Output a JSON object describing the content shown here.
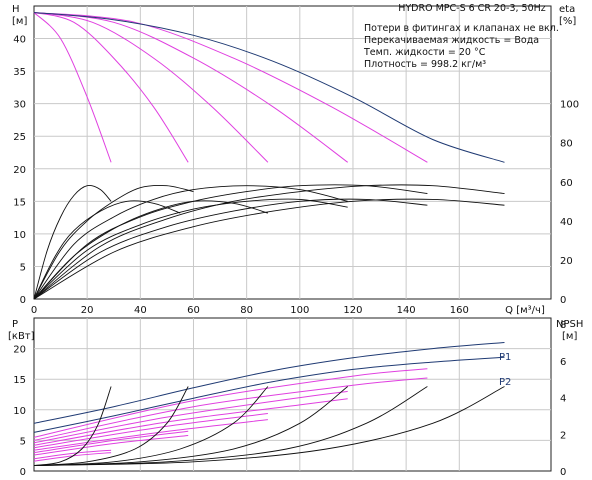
{
  "chart_data": [
    {
      "type": "line",
      "title": "HYDRO MPC-S 6 CR 20-3, 50Hz",
      "notes": [
        "Потери в фитингах и клапанах не вкл.",
        "Перекачиваемая жидкость = Вода",
        "Темп. жидкости = 20 °C",
        "Плотность = 998.2 кг/м³"
      ],
      "xlabel": "Q [м³/ч]",
      "xlim": [
        0,
        180
      ],
      "xticks": [
        0,
        20,
        40,
        60,
        80,
        100,
        120,
        140,
        160
      ],
      "ylabel_left": [
        "H",
        "[м]"
      ],
      "ylim_left": [
        0,
        45
      ],
      "yticks_left": [
        0,
        5,
        10,
        15,
        20,
        25,
        30,
        35,
        40
      ],
      "ylabel_right": [
        "eta",
        "[%]"
      ],
      "ylim_right": [
        0,
        150
      ],
      "yticks_right": [
        0,
        20,
        40,
        60,
        80,
        100
      ],
      "grid": true,
      "series_head_full": [
        {
          "pumps": 6,
          "color": "#1f3a73",
          "points": [
            [
              0,
              44.0
            ],
            [
              30,
              42.9
            ],
            [
              60,
              40.5
            ],
            [
              90,
              36.5
            ],
            [
              120,
              31.0
            ],
            [
              150,
              24.5
            ],
            [
              177,
              21.0
            ]
          ]
        }
      ],
      "series_head_reduced": [
        {
          "color": "#e040e0",
          "points": [
            [
              0,
              44.0
            ],
            [
              10,
              40.0
            ],
            [
              20,
              31.0
            ],
            [
              29,
              21.0
            ]
          ]
        },
        {
          "color": "#e040e0",
          "points": [
            [
              0,
              44.0
            ],
            [
              15,
              42.5
            ],
            [
              30,
              37.0
            ],
            [
              45,
              29.5
            ],
            [
              58,
              21.0
            ]
          ]
        },
        {
          "color": "#e040e0",
          "points": [
            [
              0,
              44.0
            ],
            [
              22,
              42.5
            ],
            [
              45,
              37.0
            ],
            [
              67,
              29.5
            ],
            [
              88,
              21.0
            ]
          ]
        },
        {
          "color": "#e040e0",
          "points": [
            [
              0,
              44.0
            ],
            [
              30,
              42.5
            ],
            [
              60,
              37.0
            ],
            [
              90,
              29.5
            ],
            [
              118,
              21.0
            ]
          ]
        },
        {
          "color": "#e040e0",
          "points": [
            [
              0,
              44.0
            ],
            [
              38,
              42.5
            ],
            [
              75,
              37.0
            ],
            [
              112,
              29.5
            ],
            [
              148,
              21.0
            ]
          ]
        }
      ],
      "series_eta": [
        {
          "points": [
            [
              0,
              0
            ],
            [
              5,
              25
            ],
            [
              10,
              42
            ],
            [
              15,
              53
            ],
            [
              20,
              58
            ],
            [
              25,
              56
            ],
            [
              29,
              50
            ]
          ]
        },
        {
          "points": [
            [
              0,
              0
            ],
            [
              8,
              22
            ],
            [
              15,
              35
            ],
            [
              25,
              45
            ],
            [
              35,
              50
            ],
            [
              45,
              49
            ],
            [
              55,
              44
            ]
          ]
        },
        {
          "points": [
            [
              0,
              0
            ],
            [
              10,
              25
            ],
            [
              20,
              40
            ],
            [
              30,
              50
            ],
            [
              40,
              57
            ],
            [
              50,
              58
            ],
            [
              60,
              55
            ]
          ]
        },
        {
          "points": [
            [
              0,
              0
            ],
            [
              15,
              22
            ],
            [
              30,
              36
            ],
            [
              45,
              45
            ],
            [
              60,
              50
            ],
            [
              75,
              49
            ],
            [
              88,
              44
            ]
          ]
        },
        {
          "points": [
            [
              0,
              0
            ],
            [
              15,
              28
            ],
            [
              30,
              42
            ],
            [
              45,
              51
            ],
            [
              60,
              56
            ],
            [
              80,
              58
            ],
            [
              100,
              56
            ],
            [
              118,
              50
            ]
          ]
        },
        {
          "points": [
            [
              0,
              0
            ],
            [
              20,
              25
            ],
            [
              40,
              38
            ],
            [
              60,
              46
            ],
            [
              80,
              50
            ],
            [
              100,
              51
            ],
            [
              118,
              47
            ]
          ]
        },
        {
          "points": [
            [
              0,
              0
            ],
            [
              20,
              28
            ],
            [
              40,
              42
            ],
            [
              60,
              50
            ],
            [
              80,
              55
            ],
            [
              100,
              58
            ],
            [
              125,
              58
            ],
            [
              148,
              54
            ]
          ]
        },
        {
          "points": [
            [
              0,
              0
            ],
            [
              25,
              24
            ],
            [
              50,
              37
            ],
            [
              75,
              45
            ],
            [
              100,
              50
            ],
            [
              125,
              51
            ],
            [
              148,
              48
            ]
          ]
        },
        {
          "points": [
            [
              0,
              0
            ],
            [
              25,
              27
            ],
            [
              50,
              41
            ],
            [
              75,
              50
            ],
            [
              100,
              55
            ],
            [
              125,
              58
            ],
            [
              150,
              58
            ],
            [
              177,
              54
            ]
          ]
        },
        {
          "points": [
            [
              0,
              0
            ],
            [
              30,
              24
            ],
            [
              60,
              37
            ],
            [
              90,
              45
            ],
            [
              120,
              50
            ],
            [
              150,
              51
            ],
            [
              177,
              48
            ]
          ]
        }
      ]
    },
    {
      "type": "line",
      "xlim": [
        0,
        180
      ],
      "ylabel_left": [
        "P",
        "[кВт]"
      ],
      "ylim_left": [
        0,
        25
      ],
      "yticks_left": [
        0,
        5,
        10,
        15,
        20
      ],
      "ylabel_right": [
        "NPSH",
        "[м]"
      ],
      "ylim_right": [
        0,
        8.333
      ],
      "yticks_right": [
        0,
        2,
        4,
        6,
        8
      ],
      "grid": true,
      "series_labels": [
        "P1",
        "P2"
      ],
      "series_P1": {
        "name": "P1",
        "color": "#1f3a73",
        "points": [
          [
            0,
            7.8
          ],
          [
            30,
            10.5
          ],
          [
            60,
            13.6
          ],
          [
            90,
            16.4
          ],
          [
            120,
            18.5
          ],
          [
            150,
            20.0
          ],
          [
            177,
            21.0
          ]
        ]
      },
      "series_P2": {
        "name": "P2",
        "color": "#1f3a73",
        "points": [
          [
            0,
            6.3
          ],
          [
            30,
            9.0
          ],
          [
            60,
            11.9
          ],
          [
            90,
            14.6
          ],
          [
            120,
            16.6
          ],
          [
            150,
            17.8
          ],
          [
            177,
            18.6
          ]
        ]
      },
      "series_power_reduced": [
        {
          "color": "#e040e0",
          "points": [
            [
              0,
              5.5
            ],
            [
              60,
              11.5
            ],
            [
              120,
              15.5
            ],
            [
              148,
              16.7
            ]
          ]
        },
        {
          "color": "#e040e0",
          "points": [
            [
              0,
              5.0
            ],
            [
              60,
              10.5
            ],
            [
              120,
              14.0
            ],
            [
              148,
              15.2
            ]
          ]
        },
        {
          "color": "#e040e0",
          "points": [
            [
              0,
              4.6
            ],
            [
              50,
              8.8
            ],
            [
              100,
              12.0
            ],
            [
              118,
              13.0
            ]
          ]
        },
        {
          "color": "#e040e0",
          "points": [
            [
              0,
              4.2
            ],
            [
              50,
              8.0
            ],
            [
              100,
              10.8
            ],
            [
              118,
              11.8
            ]
          ]
        },
        {
          "color": "#e040e0",
          "points": [
            [
              0,
              3.8
            ],
            [
              45,
              7.0
            ],
            [
              88,
              9.4
            ]
          ]
        },
        {
          "color": "#e040e0",
          "points": [
            [
              0,
              3.4
            ],
            [
              45,
              6.2
            ],
            [
              88,
              8.4
            ]
          ]
        },
        {
          "color": "#e040e0",
          "points": [
            [
              0,
              3.0
            ],
            [
              30,
              5.0
            ],
            [
              58,
              6.5
            ]
          ]
        },
        {
          "color": "#e040e0",
          "points": [
            [
              0,
              2.6
            ],
            [
              30,
              4.5
            ],
            [
              58,
              5.8
            ]
          ]
        },
        {
          "color": "#e040e0",
          "points": [
            [
              0,
              2.0
            ],
            [
              15,
              2.9
            ],
            [
              29,
              3.4
            ]
          ]
        },
        {
          "color": "#e040e0",
          "points": [
            [
              0,
              1.6
            ],
            [
              15,
              2.5
            ],
            [
              29,
              3.0
            ]
          ]
        }
      ],
      "series_npsh": [
        {
          "points": [
            [
              0,
              0.3
            ],
            [
              10,
              0.5
            ],
            [
              18,
              1.2
            ],
            [
              24,
              2.5
            ],
            [
              29,
              4.6
            ]
          ]
        },
        {
          "points": [
            [
              0,
              0.3
            ],
            [
              20,
              0.5
            ],
            [
              38,
              1.2
            ],
            [
              50,
              2.6
            ],
            [
              58,
              4.6
            ]
          ]
        },
        {
          "points": [
            [
              0,
              0.3
            ],
            [
              30,
              0.5
            ],
            [
              55,
              1.2
            ],
            [
              75,
              2.6
            ],
            [
              88,
              4.6
            ]
          ]
        },
        {
          "points": [
            [
              0,
              0.3
            ],
            [
              40,
              0.5
            ],
            [
              75,
              1.2
            ],
            [
              100,
              2.6
            ],
            [
              118,
              4.6
            ]
          ]
        },
        {
          "points": [
            [
              0,
              0.3
            ],
            [
              50,
              0.5
            ],
            [
              95,
              1.2
            ],
            [
              125,
              2.6
            ],
            [
              148,
              4.6
            ]
          ]
        },
        {
          "points": [
            [
              0,
              0.3
            ],
            [
              60,
              0.5
            ],
            [
              110,
              1.2
            ],
            [
              150,
              2.6
            ],
            [
              177,
              4.6
            ]
          ]
        }
      ]
    }
  ]
}
